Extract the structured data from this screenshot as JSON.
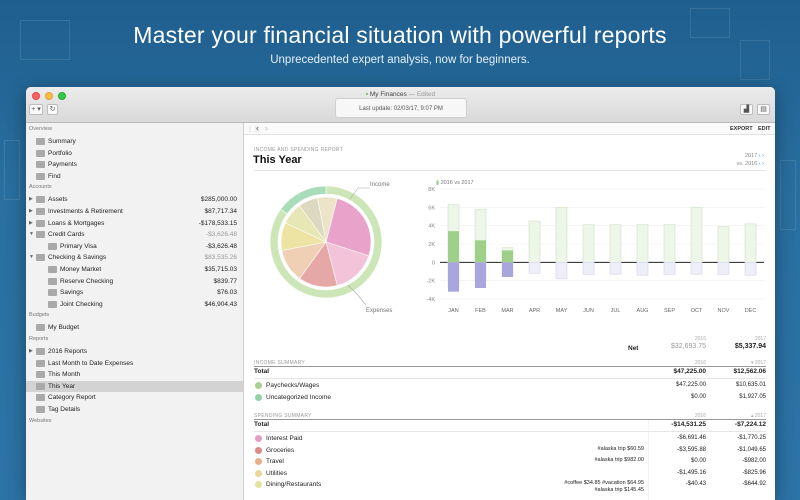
{
  "hero": {
    "title": "Master your financial situation with powerful reports",
    "subtitle": "Unprecedented expert analysis, now for beginners."
  },
  "window": {
    "title": "My Finances",
    "edited": " — Edited",
    "last_update": "Last update:  02/03/17, 9:07 PM",
    "add_btn": "+ ▾",
    "refresh_icon": "refresh-icon"
  },
  "sidebar": {
    "overview_label": "Overview",
    "overview": [
      {
        "label": "Summary",
        "icon": "summary-icon"
      },
      {
        "label": "Portfolio",
        "icon": "portfolio-icon"
      },
      {
        "label": "Payments",
        "icon": "payments-icon"
      },
      {
        "label": "Find",
        "icon": "search-icon"
      }
    ],
    "accounts_label": "Accounts",
    "accounts": [
      {
        "label": "Assets",
        "amount": "$285,000.00",
        "indent": 0,
        "arrow": "▶",
        "dim": false
      },
      {
        "label": "Investments & Retirement",
        "amount": "$87,717.34",
        "indent": 0,
        "arrow": "▶",
        "dim": false
      },
      {
        "label": "Loans & Mortgages",
        "amount": "-$178,533.15",
        "indent": 0,
        "arrow": "▶",
        "dim": false
      },
      {
        "label": "Credit Cards",
        "amount": "-$3,626.48",
        "indent": 0,
        "arrow": "▼",
        "dim": true
      },
      {
        "label": "Primary Visa",
        "amount": "-$3,626.48",
        "indent": 1,
        "arrow": "",
        "dim": false
      },
      {
        "label": "Checking & Savings",
        "amount": "$83,535.26",
        "indent": 0,
        "arrow": "▼",
        "dim": true
      },
      {
        "label": "Money Market",
        "amount": "$35,715.03",
        "indent": 1,
        "arrow": "",
        "dim": false
      },
      {
        "label": "Reserve Checking",
        "amount": "$839.77",
        "indent": 1,
        "arrow": "",
        "dim": false
      },
      {
        "label": "Savings",
        "amount": "$76.03",
        "indent": 1,
        "arrow": "",
        "dim": false
      },
      {
        "label": "Joint Checking",
        "amount": "$46,904.43",
        "indent": 1,
        "arrow": "",
        "dim": false
      }
    ],
    "budgets_label": "Budgets",
    "budgets": [
      {
        "label": "My Budget"
      }
    ],
    "reports_label": "Reports",
    "reports": [
      {
        "label": "2016 Reports",
        "arrow": "▶",
        "selected": false
      },
      {
        "label": "Last Month to Date Expenses",
        "arrow": "",
        "selected": false
      },
      {
        "label": "This Month",
        "arrow": "",
        "selected": false
      },
      {
        "label": "This Year",
        "arrow": "",
        "selected": true
      },
      {
        "label": "Category Report",
        "arrow": "",
        "selected": false
      },
      {
        "label": "Tag Details",
        "arrow": "",
        "selected": false
      }
    ],
    "websites_label": "Websites"
  },
  "toolbar": {
    "export": "EXPORT",
    "edit": "EDIT"
  },
  "report": {
    "kicker": "INCOME AND SPENDING REPORT",
    "title": "This Year",
    "period_year": "2017",
    "period_vs": "vs. 2016",
    "legend": "2016 vs 2017",
    "pie_income": "Income",
    "pie_expenses": "Expenses"
  },
  "chart_data": {
    "type": "bar",
    "categories": [
      "JAN",
      "FEB",
      "MAR",
      "APR",
      "MAY",
      "JUN",
      "JUL",
      "AUG",
      "SEP",
      "OCT",
      "NOV",
      "DEC"
    ],
    "yticks": [
      "8K",
      "6K",
      "4K",
      "2K",
      "0",
      "-2K",
      "-4K"
    ],
    "ylim": [
      -4000,
      8000
    ],
    "series": [
      {
        "name": "2016",
        "income": [
          6300,
          5800,
          1600,
          4500,
          6000,
          4100,
          4100,
          4100,
          4100,
          6000,
          3900,
          4200
        ],
        "spending": [
          -2700,
          -2000,
          -1500,
          -1200,
          -1800,
          -1300,
          -1300,
          -1400,
          -1300,
          -1300,
          -1300,
          -1400
        ]
      },
      {
        "name": "2017",
        "income": [
          3400,
          2400,
          1300,
          0,
          0,
          0,
          0,
          0,
          0,
          0,
          0,
          0
        ],
        "spending": [
          -3200,
          -2800,
          -1600,
          0,
          0,
          0,
          0,
          0,
          0,
          0,
          0,
          0
        ]
      }
    ]
  },
  "net": {
    "label": "Net",
    "y2016": "2016",
    "y2017": "2017",
    "v2016": "$32,693.75",
    "v2017": "$5,337.94"
  },
  "income_summary": {
    "head": "INCOME SUMMARY",
    "y2016": "2016",
    "y2017": "▾ 2017",
    "total_label": "Total",
    "total_2016": "$47,225.00",
    "total_2017": "$12,562.06",
    "rows": [
      {
        "label": "Paychecks/Wages",
        "v2016": "$47,225.00",
        "v2017": "$10,635.01",
        "color": "#a8d18d",
        "tags": ""
      },
      {
        "label": "Uncategorized Income",
        "v2016": "$0.00",
        "v2017": "$1,927.05",
        "color": "#8fd3a6",
        "tags": ""
      }
    ]
  },
  "spending_summary": {
    "head": "SPENDING SUMMARY",
    "y2016": "2016",
    "y2017": "▴ 2017",
    "total_label": "Total",
    "total_2016": "-$14,531.25",
    "total_2017": "-$7,224.12",
    "rows": [
      {
        "label": "Interest Paid",
        "v2016": "-$6,691.46",
        "v2017": "-$1,770.25",
        "color": "#e89bc4",
        "tags": ""
      },
      {
        "label": "Groceries",
        "v2016": "-$3,595.88",
        "v2017": "-$1,049.65",
        "color": "#dc8a8a",
        "tags": "#alaska trip $60.59"
      },
      {
        "label": "Travel",
        "v2016": "$0.00",
        "v2017": "-$982.00",
        "color": "#e7b08a",
        "tags": "#alaska trip $982.00"
      },
      {
        "label": "Utilities",
        "v2016": "-$1,495.16",
        "v2017": "-$825.96",
        "color": "#e9d89a",
        "tags": ""
      },
      {
        "label": "Dining/Restaurants",
        "v2016": "-$40.43",
        "v2017": "-$644.92",
        "color": "#e3e3a0",
        "tags": "#coffee $34.85   #vacation $64.95\n#alaska trip $145.45"
      }
    ]
  }
}
